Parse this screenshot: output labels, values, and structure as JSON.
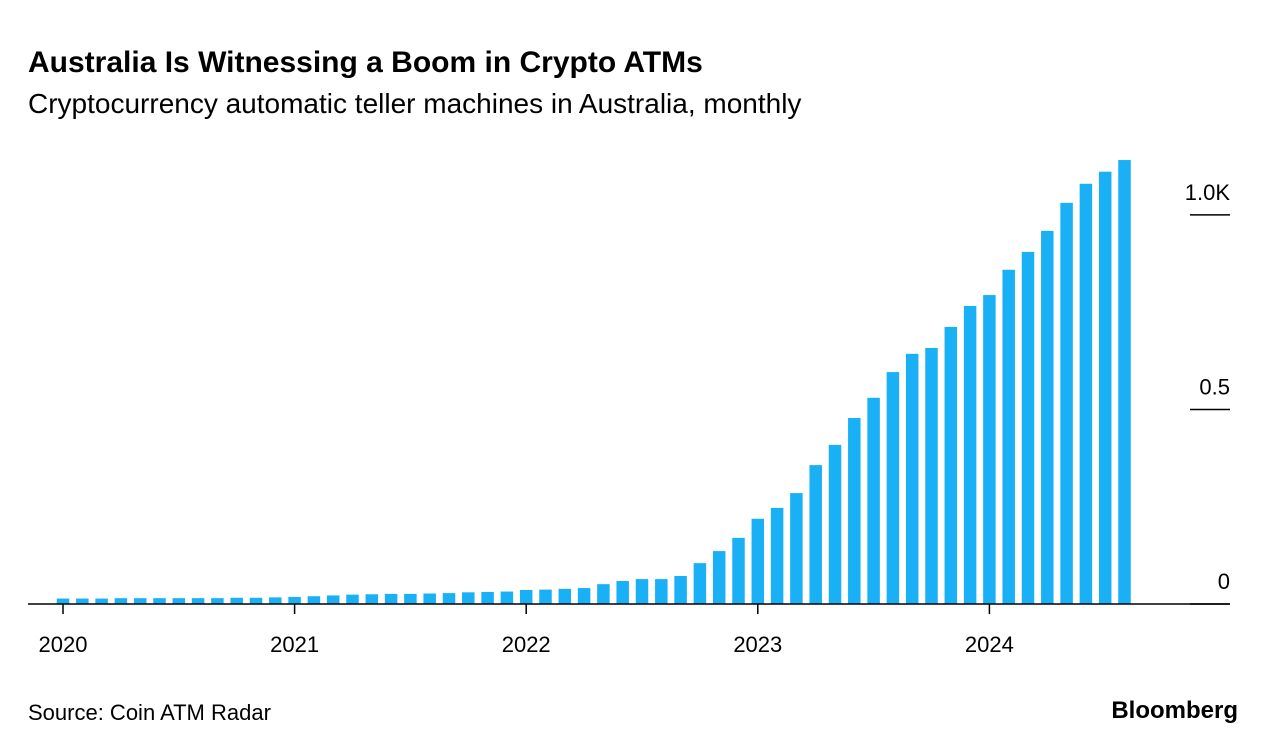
{
  "chart_data": {
    "type": "bar",
    "title": "Australia Is Witnessing a Boom in Crypto ATMs",
    "subtitle": "Cryptocurrency automatic teller machines in Australia, monthly",
    "source": "Source: Coin ATM Radar",
    "brand": "Bloomberg",
    "categories": [
      "2020",
      null,
      null,
      null,
      null,
      null,
      null,
      null,
      null,
      null,
      null,
      null,
      "2021",
      null,
      null,
      null,
      null,
      null,
      null,
      null,
      null,
      null,
      null,
      null,
      "2022",
      null,
      null,
      null,
      null,
      null,
      null,
      null,
      null,
      null,
      null,
      null,
      "2023",
      null,
      null,
      null,
      null,
      null,
      null,
      null,
      null,
      null,
      null,
      null,
      "2024",
      null,
      null,
      null,
      null,
      null,
      null,
      null
    ],
    "values": [
      14,
      14,
      14,
      15,
      15,
      15,
      15,
      15,
      15,
      16,
      16,
      17,
      18,
      20,
      22,
      24,
      25,
      26,
      26,
      27,
      28,
      30,
      31,
      32,
      36,
      37,
      39,
      41,
      51,
      59,
      64,
      64,
      72,
      105,
      136,
      170,
      219,
      247,
      285,
      357,
      409,
      478,
      530,
      596,
      643,
      658,
      712,
      766,
      794,
      859,
      905,
      959,
      1031,
      1080,
      1111,
      1141
    ],
    "color": "#1ab0f5",
    "ylim": [
      0,
      1100
    ],
    "yticks": [
      0,
      {
        "value": 500,
        "label": "0.5"
      },
      {
        "value": 1000,
        "label": "1.0K"
      }
    ],
    "y_axis_side": "right"
  }
}
